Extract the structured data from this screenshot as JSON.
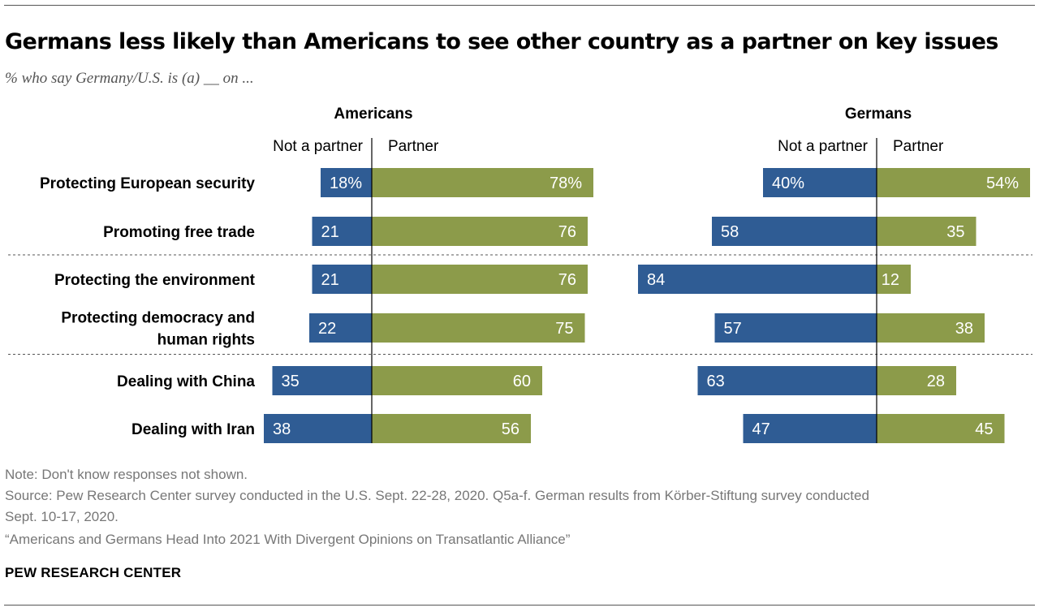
{
  "title": "Germans less likely than Americans to see other country as a partner on key issues",
  "subtitle": "% who say Germany/U.S. is (a) __ on ...",
  "colors": {
    "not_partner": "#2f5c94",
    "partner": "#8c9b4a",
    "text_on_bar": "#ffffff"
  },
  "chart_data": {
    "type": "bar",
    "orientation": "horizontal-diverging",
    "categories": [
      "Protecting European security",
      "Promoting free trade",
      "Protecting the environment",
      "Protecting democracy and human rights",
      "Dealing with China",
      "Dealing with Iran"
    ],
    "category_lines": [
      [
        "Protecting European security"
      ],
      [
        "Promoting free trade"
      ],
      [
        "Protecting the environment"
      ],
      [
        "Protecting democracy and",
        "human rights"
      ],
      [
        "Dealing with China"
      ],
      [
        "Dealing with Iran"
      ]
    ],
    "group_breaks_after": [
      1,
      3
    ],
    "column_headers": {
      "negative": "Not a partner",
      "positive": "Partner"
    },
    "panels": [
      {
        "name": "Americans",
        "series": [
          {
            "name": "Not a partner",
            "values": [
              18,
              21,
              21,
              22,
              35,
              38
            ]
          },
          {
            "name": "Partner",
            "values": [
              78,
              76,
              76,
              75,
              60,
              56
            ]
          }
        ]
      },
      {
        "name": "Germans",
        "series": [
          {
            "name": "Not a partner",
            "values": [
              40,
              58,
              84,
              57,
              63,
              47
            ]
          },
          {
            "name": "Partner",
            "values": [
              54,
              35,
              12,
              38,
              28,
              45
            ]
          }
        ]
      }
    ],
    "first_row_suffix": "%"
  },
  "notes": {
    "note": "Note: Don't know responses not shown.",
    "source_line1": "Source: Pew Research Center survey conducted in the U.S. Sept. 22-28, 2020. Q5a-f. German results from Körber-Stiftung survey conducted",
    "source_line2": "Sept. 10-17, 2020.",
    "report": "“Americans and Germans Head Into 2021 With Divergent Opinions on Transatlantic Alliance”"
  },
  "footer": "PEW RESEARCH CENTER"
}
